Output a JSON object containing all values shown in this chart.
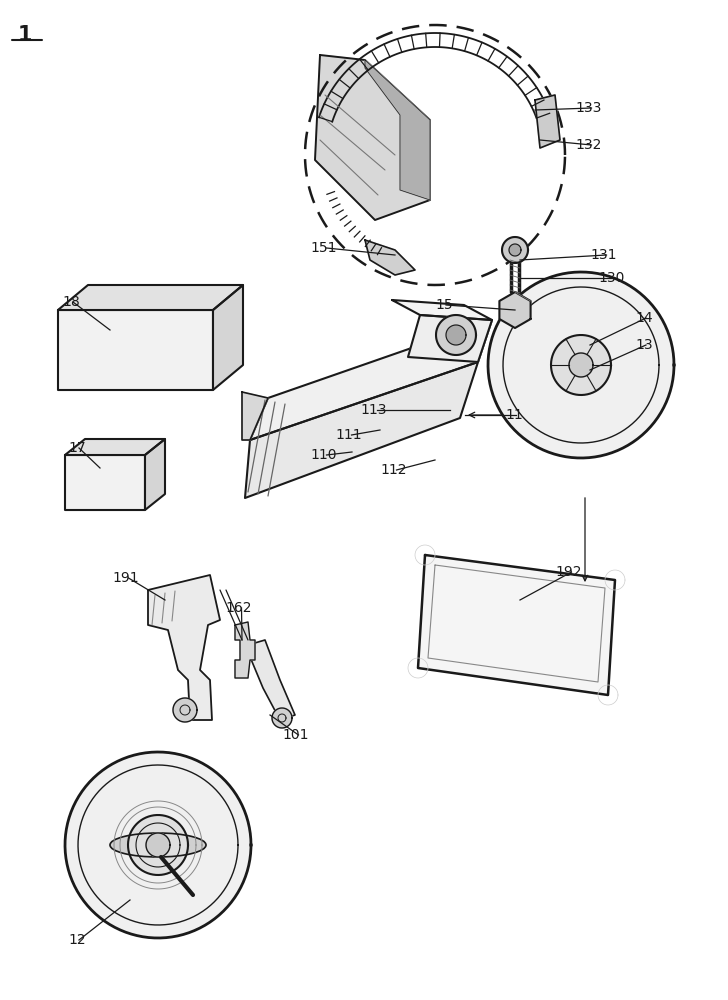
{
  "bg_color": "#ffffff",
  "lc": "#1a1a1a",
  "lw": 1.3,
  "fig_w": 728,
  "fig_h": 1000
}
